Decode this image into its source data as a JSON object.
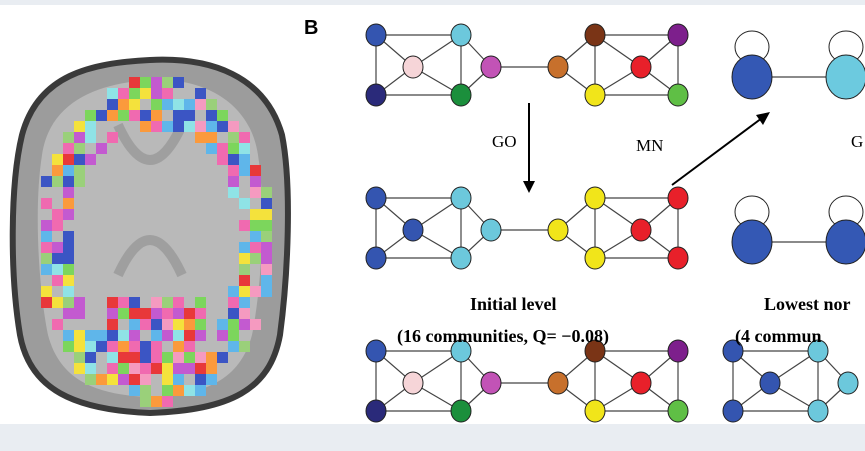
{
  "panel_label": "B",
  "arrows": {
    "go_label_left": "GO",
    "mn_label": "MN",
    "go_label_right": "G"
  },
  "initial_level": {
    "title": "Initial level",
    "detail": "(16 communities, Q= −0.08)"
  },
  "lowest_level": {
    "title": "Lowest nor",
    "detail": "(4 commun"
  },
  "colors": {
    "blue": "#3455b0",
    "navy": "#2a2a7a",
    "cyan": "#6cc8dc",
    "pink": "#f6d5d8",
    "purple": "#c253b6",
    "green": "#1b8f3c",
    "orange": "#c7702c",
    "brown": "#7a3416",
    "darkpurple": "#7d1f8c",
    "red": "#e8202a",
    "yellow": "#f1e51a",
    "lightgreen": "#5fbf45",
    "big_blue": "#3458b4",
    "big_cyan": "#6ccadf"
  }
}
